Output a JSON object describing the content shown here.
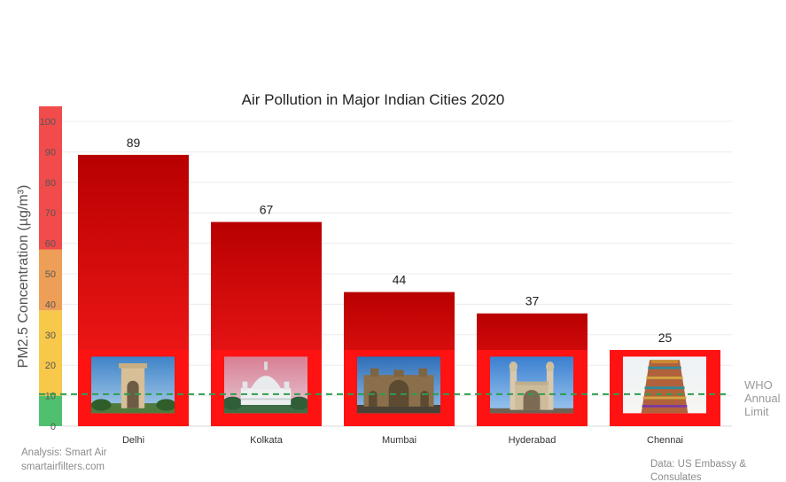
{
  "chart_data": {
    "type": "bar",
    "title": "Air Pollution in Major Indian Cities 2020",
    "ylabel": "PM2.5 Concentration  (µg/m³)",
    "xlabel": "",
    "ylim": [
      0,
      100
    ],
    "yticks": [
      0,
      10,
      20,
      30,
      40,
      50,
      60,
      70,
      80,
      90,
      100
    ],
    "categories": [
      "Delhi",
      "Kolkata",
      "Mumbai",
      "Hyderabad",
      "Chennai"
    ],
    "values": [
      89,
      67,
      44,
      37,
      25
    ],
    "data_labels": [
      "89",
      "67",
      "44",
      "37",
      "25"
    ],
    "reference_line": {
      "value": 10.5,
      "label": "WHO Annual Limit",
      "label_lines": [
        "WHO",
        "Annual",
        "Limit"
      ],
      "color": "#2e9e4f",
      "style": "dashed"
    },
    "aqi_bands": [
      {
        "from": 0,
        "to": 10,
        "color": "#4fc16e"
      },
      {
        "from": 10,
        "to": 38,
        "color": "#f7c84a"
      },
      {
        "from": 38,
        "to": 58,
        "color": "#ee9f57"
      },
      {
        "from": 58,
        "to": 100,
        "color": "#f24b4b"
      }
    ],
    "bar_colors": {
      "top": "#b80000",
      "bottom": "#ff1e1e",
      "photo_frame": "#ff1212"
    },
    "landmark_icons": [
      "india-gate-icon",
      "victoria-memorial-icon",
      "gateway-of-india-icon",
      "charminar-icon",
      "temple-gopuram-icon"
    ],
    "grid": true
  },
  "footer": {
    "source_left_line1": "Analysis: Smart Air",
    "source_left_line2": "smartairfilters.com",
    "source_right_line1": "Data: US Embassy &",
    "source_right_line2": "Consulates"
  }
}
